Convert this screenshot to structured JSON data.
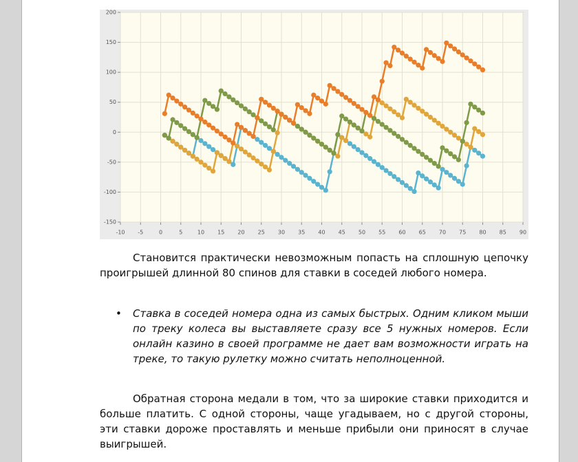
{
  "chart_data": {
    "type": "line",
    "x": [
      1,
      2,
      3,
      4,
      5,
      6,
      7,
      8,
      9,
      10,
      11,
      12,
      13,
      14,
      15,
      16,
      17,
      18,
      19,
      20,
      21,
      22,
      23,
      24,
      25,
      26,
      27,
      28,
      29,
      30,
      31,
      32,
      33,
      34,
      35,
      36,
      37,
      38,
      39,
      40,
      41,
      42,
      43,
      44,
      45,
      46,
      47,
      48,
      49,
      50,
      51,
      52,
      53,
      54,
      55,
      56,
      57,
      58,
      59,
      60,
      61,
      62,
      63,
      64,
      65,
      66,
      67,
      68,
      69,
      70,
      71,
      72,
      73,
      74,
      75,
      76,
      77,
      78,
      79,
      80
    ],
    "series": [
      {
        "color": "#5ab4cf",
        "values": [
          -5,
          -10,
          -15,
          -20,
          -25,
          -30,
          -35,
          -40,
          -9,
          -14,
          -19,
          -24,
          -29,
          -34,
          -39,
          -44,
          -49,
          -54,
          -23,
          8,
          3,
          -2,
          -7,
          -12,
          -17,
          -22,
          -27,
          -32,
          -37,
          -42,
          -47,
          -52,
          -57,
          -62,
          -67,
          -72,
          -77,
          -82,
          -87,
          -92,
          -97,
          -66,
          -35,
          -4,
          -9,
          -14,
          -19,
          -24,
          -29,
          -34,
          -39,
          -44,
          -49,
          -54,
          -59,
          -64,
          -69,
          -74,
          -79,
          -84,
          -89,
          -94,
          -99,
          -68,
          -73,
          -78,
          -83,
          -88,
          -93,
          -62,
          -67,
          -72,
          -77,
          -82,
          -87,
          -56,
          -25,
          -30,
          -35,
          -40
        ]
      },
      {
        "color": "#e0a63c",
        "values": [
          -5,
          -10,
          -15,
          -20,
          -25,
          -30,
          -35,
          -40,
          -45,
          -50,
          -55,
          -60,
          -65,
          -34,
          -39,
          -44,
          -49,
          -18,
          -23,
          -28,
          -33,
          -38,
          -43,
          -48,
          -53,
          -58,
          -63,
          -32,
          -1,
          30,
          25,
          20,
          15,
          10,
          5,
          0,
          -5,
          -10,
          -15,
          -20,
          -25,
          -30,
          -35,
          -40,
          -9,
          -14,
          17,
          12,
          7,
          2,
          -3,
          -8,
          23,
          54,
          49,
          44,
          39,
          34,
          29,
          24,
          55,
          50,
          45,
          40,
          35,
          30,
          25,
          20,
          15,
          10,
          5,
          0,
          -5,
          -10,
          -15,
          -20,
          -25,
          6,
          1,
          -4
        ]
      },
      {
        "color": "#7f9a48",
        "values": [
          -5,
          -10,
          21,
          16,
          11,
          6,
          1,
          -4,
          -9,
          22,
          53,
          48,
          43,
          38,
          69,
          64,
          59,
          54,
          49,
          44,
          39,
          34,
          29,
          24,
          19,
          14,
          9,
          4,
          35,
          30,
          25,
          20,
          15,
          10,
          5,
          0,
          -5,
          -10,
          -15,
          -20,
          -25,
          -30,
          -35,
          -4,
          27,
          22,
          17,
          12,
          7,
          2,
          33,
          28,
          23,
          18,
          13,
          8,
          3,
          -2,
          -7,
          -12,
          -17,
          -22,
          -27,
          -32,
          -37,
          -42,
          -47,
          -52,
          -57,
          -26,
          -31,
          -36,
          -41,
          -46,
          -15,
          16,
          47,
          42,
          37,
          32
        ]
      },
      {
        "color": "#e87d2a",
        "values": [
          31,
          62,
          57,
          52,
          47,
          42,
          37,
          32,
          27,
          22,
          17,
          12,
          7,
          2,
          -3,
          -8,
          -13,
          -18,
          13,
          8,
          3,
          -2,
          -7,
          24,
          55,
          50,
          45,
          40,
          35,
          30,
          25,
          20,
          15,
          46,
          41,
          36,
          31,
          62,
          57,
          52,
          47,
          78,
          73,
          68,
          63,
          58,
          53,
          48,
          43,
          38,
          33,
          28,
          59,
          54,
          85,
          116,
          111,
          142,
          137,
          132,
          127,
          122,
          117,
          112,
          107,
          138,
          133,
          128,
          123,
          118,
          149,
          144,
          139,
          134,
          129,
          124,
          119,
          114,
          109,
          104
        ]
      }
    ],
    "xlim": [
      -10,
      90
    ],
    "xticks": [
      -10,
      -5,
      0,
      5,
      10,
      15,
      20,
      25,
      30,
      35,
      40,
      45,
      50,
      55,
      60,
      65,
      70,
      75,
      80,
      85,
      90
    ],
    "ylim": [
      -150,
      200
    ],
    "yticks": [
      -150,
      -100,
      -50,
      0,
      50,
      100,
      150,
      200
    ],
    "grid": true
  },
  "document": {
    "paragraph_1": "Становится практически невозможным попасть на сплошную цепочку проигрышей длинной 80 спинов для ставки в соседей любого номера.",
    "bullet_1": "Ставка в соседей номера одна из самых быстрых. Одним кликом мыши по треку колеса вы выставляете сразу все 5 нужных номеров. Если онлайн казино в своей программе не дает вам возможности играть на треке, то такую рулетку можно считать неполноценной.",
    "paragraph_2": "Обратная сторона медали в том, что за широкие ставки приходится и больше платить. С одной стороны, чаще угадываем, но с другой стороны, эти ставки дороже проставлять и меньше прибыли они приносят в случае выигрышей."
  }
}
